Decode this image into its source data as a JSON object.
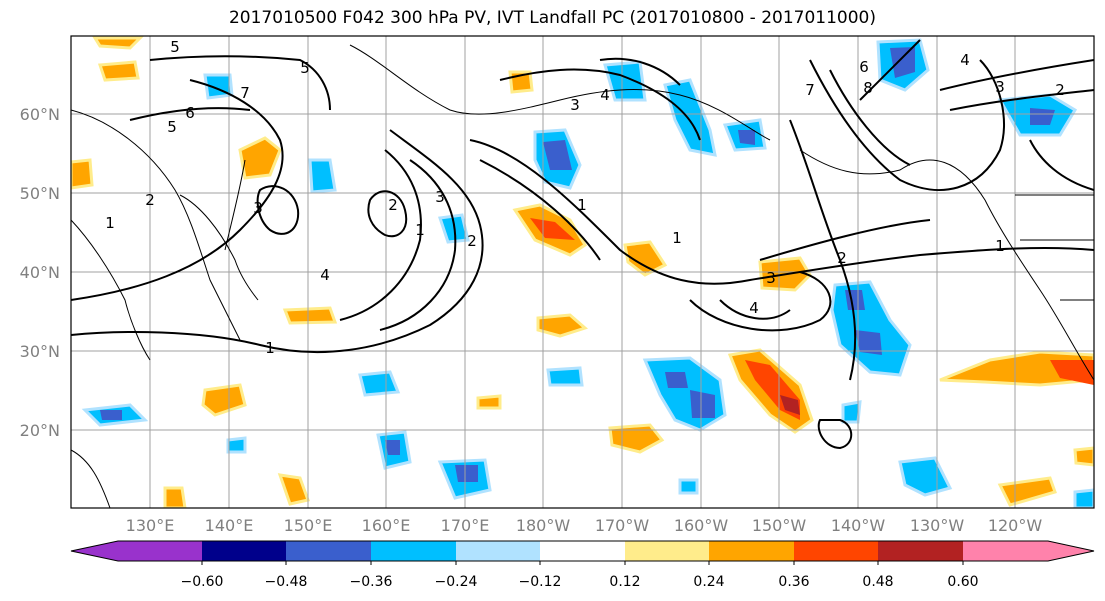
{
  "title": "2017010500 F042 300 hPa PV, IVT Landfall PC (2017010800 - 2017011000)",
  "map": {
    "lat_labels": [
      "60°N",
      "50°N",
      "40°N",
      "30°N",
      "20°N"
    ],
    "lon_labels": [
      "130°E",
      "140°E",
      "150°E",
      "160°E",
      "170°E",
      "180°W",
      "170°W",
      "160°W",
      "150°W",
      "140°W",
      "130°W",
      "120°W"
    ],
    "contour_labels": [
      "5",
      "6",
      "7",
      "5",
      "1",
      "2",
      "3",
      "4",
      "5",
      "1",
      "2",
      "3",
      "1",
      "2",
      "3",
      "4",
      "1",
      "1",
      "2",
      "3",
      "4",
      "7",
      "6",
      "8",
      "1",
      "2",
      "4",
      "3"
    ],
    "grid": true
  },
  "colorbar": {
    "ticks": [
      "−0.60",
      "−0.48",
      "−0.36",
      "−0.24",
      "−0.12",
      "0.12",
      "0.24",
      "0.36",
      "0.48",
      "0.60"
    ],
    "colors": [
      "#9932cc",
      "#00008b",
      "#3a5fcd",
      "#00bfff",
      "#b0e2ff",
      "#ffffff",
      "#ffec8b",
      "#ffa500",
      "#ff4500",
      "#b22222",
      "#ff82ab"
    ],
    "extend": "both"
  }
}
